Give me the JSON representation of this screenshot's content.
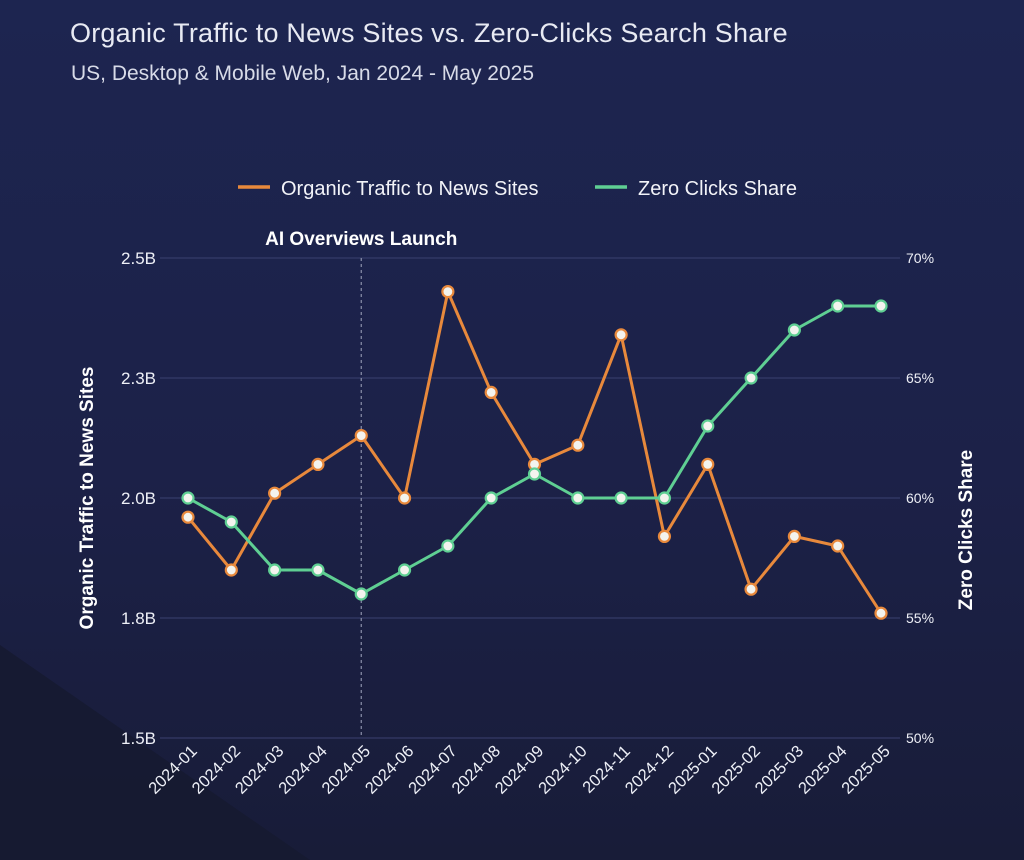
{
  "header": {
    "title": "Organic Traffic to News Sites vs. Zero-Clicks Search Share",
    "subtitle": "US, Desktop & Mobile Web, Jan 2024 - May 2025"
  },
  "colors": {
    "traffic": "#e8893c",
    "zero_clicks": "#5fcf93",
    "gridline": "#3a4170",
    "annotation_line": "#8b90aa",
    "marker_fill": "#f3f3ee"
  },
  "chart_data": {
    "type": "line",
    "x": [
      "2024-01",
      "2024-02",
      "2024-03",
      "2024-04",
      "2024-05",
      "2024-06",
      "2024-07",
      "2024-08",
      "2024-09",
      "2024-10",
      "2024-11",
      "2024-12",
      "2025-01",
      "2025-02",
      "2025-03",
      "2025-04",
      "2025-05"
    ],
    "series": [
      {
        "name": "Organic Traffic to News Sites",
        "axis": "left",
        "unit": "B",
        "values": [
          1.96,
          1.85,
          2.01,
          2.07,
          2.13,
          2.0,
          2.43,
          2.22,
          2.07,
          2.11,
          2.34,
          1.92,
          2.07,
          1.81,
          1.92,
          1.9,
          1.76
        ]
      },
      {
        "name": "Zero Clicks Share",
        "axis": "right",
        "unit": "%",
        "values": [
          60,
          59,
          57,
          57,
          56,
          57,
          58,
          60,
          61,
          60,
          60,
          60,
          63,
          65,
          67,
          68,
          68
        ]
      }
    ],
    "y_left": {
      "label": "Organic Traffic to News Sites",
      "ylim": [
        1.5,
        2.5
      ],
      "ticks": [
        {
          "value": 1.5,
          "label": "1.5B"
        },
        {
          "value": 1.75,
          "label": "1.8B"
        },
        {
          "value": 2.0,
          "label": "2.0B"
        },
        {
          "value": 2.25,
          "label": "2.3B"
        },
        {
          "value": 2.5,
          "label": "2.5B"
        }
      ]
    },
    "y_right": {
      "label": "Zero Clicks Share",
      "ylim": [
        50,
        70
      ],
      "ticks": [
        {
          "value": 50,
          "label": "50%"
        },
        {
          "value": 55,
          "label": "55%"
        },
        {
          "value": 60,
          "label": "60%"
        },
        {
          "value": 65,
          "label": "65%"
        },
        {
          "value": 70,
          "label": "70%"
        }
      ]
    },
    "annotations": [
      {
        "x": "2024-05",
        "label": "AI Overviews Launch"
      }
    ],
    "grid": true,
    "legend": "top-center"
  }
}
